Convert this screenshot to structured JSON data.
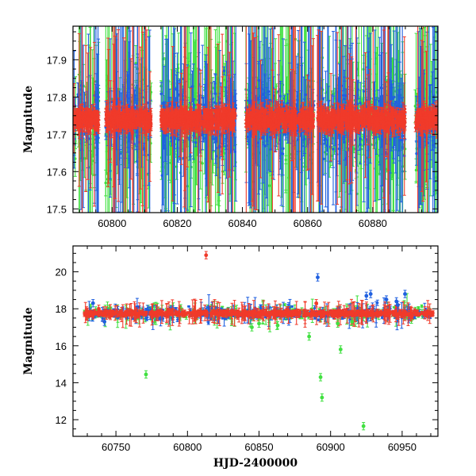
{
  "chart_data": [
    {
      "type": "scatter",
      "panel": "top",
      "xlabel": "",
      "ylabel": "Magnitude",
      "xlim": [
        60788,
        60900
      ],
      "ylim": [
        17.99,
        17.49
      ],
      "y_inverted": true,
      "x_ticks": [
        60800,
        60820,
        60840,
        60860,
        60880
      ],
      "y_ticks": [
        17.5,
        17.6,
        17.7,
        17.8,
        17.9
      ],
      "x_minor_step": 5,
      "y_minor_step": 0.025,
      "grid": false,
      "error_bars": true,
      "baseline_mag": 17.74,
      "dense_spans": [
        [
          60788,
          60796
        ],
        [
          60798,
          60812
        ],
        [
          60815,
          60838
        ],
        [
          60841,
          60862
        ],
        [
          60863,
          60890
        ],
        [
          60893,
          60900
        ]
      ],
      "series": [
        {
          "color": "#2060e0"
        },
        {
          "color": "#40e040"
        },
        {
          "color": "#f03a2a"
        }
      ]
    },
    {
      "type": "scatter",
      "panel": "bottom",
      "xlabel": "HJD-2400000",
      "ylabel": "Magnitude",
      "xlim": [
        60720,
        60975
      ],
      "ylim": [
        21.4,
        11.1
      ],
      "y_inverted": true,
      "x_ticks": [
        60750,
        60800,
        60850,
        60900,
        60950
      ],
      "y_ticks": [
        12,
        14,
        16,
        18,
        20
      ],
      "x_minor_step": 10,
      "y_minor_step": 0.5,
      "grid": false,
      "error_bars": true,
      "baseline_mag": 17.75,
      "dense_span": [
        60728,
        60972
      ],
      "outliers": {
        "green": [
          [
            60771,
            14.45
          ],
          [
            60885,
            16.5
          ],
          [
            60893,
            14.3
          ],
          [
            60894,
            13.2
          ],
          [
            60907,
            15.8
          ],
          [
            60923,
            11.65
          ],
          [
            60845,
            17.0
          ],
          [
            60850,
            17.2
          ],
          [
            60863,
            17.1
          ],
          [
            60905,
            17.2
          ],
          [
            60915,
            17.3
          ]
        ],
        "red": [
          [
            60813,
            20.9
          ],
          [
            60738,
            18.0
          ],
          [
            60890,
            18.3
          ]
        ],
        "blue": [
          [
            60734,
            18.3
          ],
          [
            60742,
            17.3
          ],
          [
            60891,
            19.7
          ],
          [
            60925,
            18.7
          ],
          [
            60928,
            18.8
          ],
          [
            60939,
            18.5
          ],
          [
            60946,
            18.4
          ],
          [
            60952,
            18.8
          ],
          [
            60947,
            18.2
          ]
        ]
      },
      "series": [
        {
          "color": "#2060e0"
        },
        {
          "color": "#40e040"
        },
        {
          "color": "#f03a2a"
        }
      ]
    }
  ]
}
